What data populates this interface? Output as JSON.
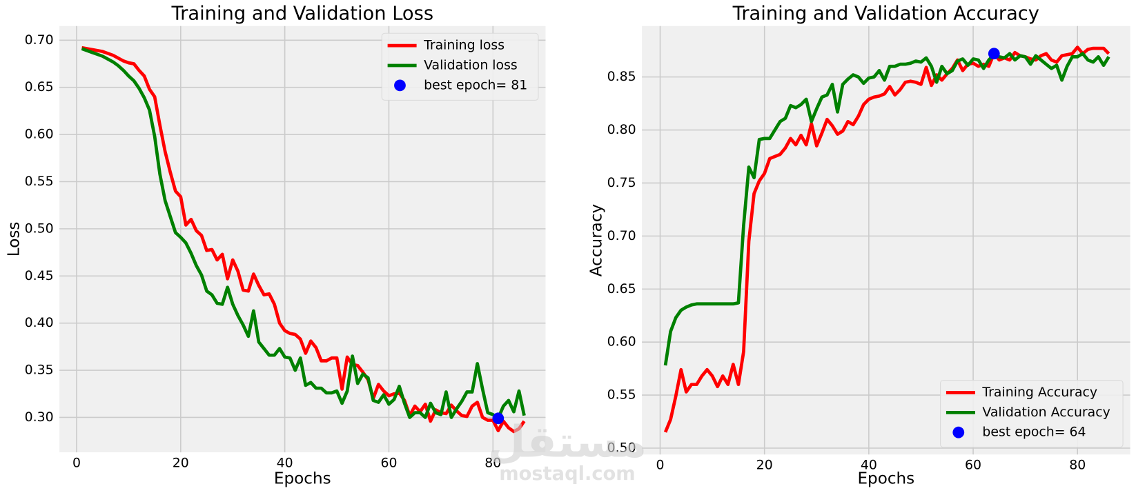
{
  "chart_data": [
    {
      "type": "line",
      "title": "Training and Validation Loss",
      "xlabel": "Epochs",
      "ylabel": "Loss",
      "x": [
        1,
        2,
        3,
        4,
        5,
        6,
        7,
        8,
        9,
        10,
        11,
        12,
        13,
        14,
        15,
        16,
        17,
        18,
        19,
        20,
        21,
        22,
        23,
        24,
        25,
        26,
        27,
        28,
        29,
        30,
        31,
        32,
        33,
        34,
        35,
        36,
        37,
        38,
        39,
        40,
        41,
        42,
        43,
        44,
        45,
        46,
        47,
        48,
        49,
        50,
        51,
        52,
        53,
        54,
        55,
        56,
        57,
        58,
        59,
        60,
        61,
        62,
        63,
        64,
        65,
        66,
        67,
        68,
        69,
        70,
        71,
        72,
        73,
        74,
        75,
        76,
        77,
        78,
        79,
        80,
        81,
        82,
        83,
        84,
        85,
        86
      ],
      "series": [
        {
          "name": "Training loss",
          "color": "red",
          "values": [
            0.692,
            0.691,
            0.69,
            0.689,
            0.688,
            0.686,
            0.684,
            0.681,
            0.678,
            0.676,
            0.675,
            0.668,
            0.662,
            0.648,
            0.64,
            0.61,
            0.582,
            0.56,
            0.54,
            0.534,
            0.504,
            0.51,
            0.498,
            0.493,
            0.477,
            0.478,
            0.467,
            0.473,
            0.447,
            0.467,
            0.455,
            0.435,
            0.434,
            0.452,
            0.44,
            0.43,
            0.431,
            0.42,
            0.4,
            0.392,
            0.389,
            0.388,
            0.383,
            0.368,
            0.381,
            0.374,
            0.36,
            0.36,
            0.363,
            0.363,
            0.33,
            0.364,
            0.356,
            0.355,
            0.348,
            0.34,
            0.32,
            0.335,
            0.328,
            0.323,
            0.325,
            0.326,
            0.318,
            0.302,
            0.312,
            0.306,
            0.314,
            0.296,
            0.308,
            0.305,
            0.304,
            0.313,
            0.307,
            0.302,
            0.301,
            0.312,
            0.316,
            0.3,
            0.297,
            0.297,
            0.286,
            0.296,
            0.289,
            0.285,
            0.288,
            0.296
          ]
        },
        {
          "name": "Validation loss",
          "color": "green",
          "values": [
            0.691,
            0.689,
            0.687,
            0.685,
            0.683,
            0.68,
            0.677,
            0.673,
            0.668,
            0.662,
            0.657,
            0.649,
            0.639,
            0.626,
            0.598,
            0.558,
            0.53,
            0.513,
            0.496,
            0.491,
            0.485,
            0.474,
            0.461,
            0.451,
            0.434,
            0.43,
            0.421,
            0.42,
            0.438,
            0.42,
            0.408,
            0.398,
            0.386,
            0.413,
            0.38,
            0.373,
            0.366,
            0.366,
            0.373,
            0.364,
            0.363,
            0.35,
            0.363,
            0.334,
            0.337,
            0.331,
            0.331,
            0.326,
            0.326,
            0.328,
            0.315,
            0.328,
            0.365,
            0.336,
            0.346,
            0.342,
            0.318,
            0.316,
            0.324,
            0.314,
            0.319,
            0.333,
            0.315,
            0.3,
            0.305,
            0.305,
            0.3,
            0.315,
            0.305,
            0.303,
            0.327,
            0.3,
            0.309,
            0.317,
            0.327,
            0.327,
            0.357,
            0.33,
            0.305,
            0.303,
            0.299,
            0.312,
            0.318,
            0.306,
            0.328,
            0.302
          ]
        },
        {
          "name": "best epoch= 81",
          "color": "blue",
          "x": [
            81
          ],
          "values": [
            0.299
          ]
        }
      ],
      "xlim": [
        -3.3,
        90.1
      ],
      "xticks": [
        0,
        20,
        40,
        60,
        80
      ],
      "ylim": [
        0.263,
        0.715
      ],
      "yticks": [
        {
          "value": 0.3,
          "label": "0.30"
        },
        0.35,
        {
          "value": 0.4,
          "label": "0.40"
        },
        0.45,
        {
          "value": 0.5,
          "label": "0.50"
        },
        0.55,
        {
          "value": 0.6,
          "label": "0.60"
        },
        0.65,
        {
          "value": 0.7,
          "label": "0.70"
        }
      ],
      "grid": true,
      "legend": "upper right"
    },
    {
      "type": "line",
      "title": "Training and Validation Accuracy",
      "xlabel": "Epochs",
      "ylabel": "Accuracy",
      "x": [
        1,
        2,
        3,
        4,
        5,
        6,
        7,
        8,
        9,
        10,
        11,
        12,
        13,
        14,
        15,
        16,
        17,
        18,
        19,
        20,
        21,
        22,
        23,
        24,
        25,
        26,
        27,
        28,
        29,
        30,
        31,
        32,
        33,
        34,
        35,
        36,
        37,
        38,
        39,
        40,
        41,
        42,
        43,
        44,
        45,
        46,
        47,
        48,
        49,
        50,
        51,
        52,
        53,
        54,
        55,
        56,
        57,
        58,
        59,
        60,
        61,
        62,
        63,
        64,
        65,
        66,
        67,
        68,
        69,
        70,
        71,
        72,
        73,
        74,
        75,
        76,
        77,
        78,
        79,
        80,
        81,
        82,
        83,
        84,
        85,
        86
      ],
      "series": [
        {
          "name": "Training Accuracy",
          "color": "red",
          "values": [
            0.515,
            0.527,
            0.549,
            0.574,
            0.553,
            0.56,
            0.56,
            0.568,
            0.574,
            0.568,
            0.558,
            0.568,
            0.56,
            0.579,
            0.56,
            0.591,
            0.695,
            0.74,
            0.752,
            0.759,
            0.773,
            0.775,
            0.777,
            0.783,
            0.792,
            0.786,
            0.795,
            0.786,
            0.806,
            0.785,
            0.797,
            0.81,
            0.804,
            0.796,
            0.799,
            0.808,
            0.805,
            0.813,
            0.824,
            0.829,
            0.831,
            0.832,
            0.834,
            0.841,
            0.833,
            0.838,
            0.845,
            0.846,
            0.845,
            0.843,
            0.859,
            0.842,
            0.852,
            0.847,
            0.853,
            0.858,
            0.866,
            0.856,
            0.862,
            0.863,
            0.86,
            0.862,
            0.86,
            0.872,
            0.866,
            0.868,
            0.866,
            0.873,
            0.87,
            0.869,
            0.867,
            0.866,
            0.87,
            0.872,
            0.866,
            0.864,
            0.87,
            0.871,
            0.872,
            0.878,
            0.872,
            0.876,
            0.877,
            0.877,
            0.877,
            0.872
          ]
        },
        {
          "name": "Validation Accuracy",
          "color": "green",
          "values": [
            0.578,
            0.61,
            0.623,
            0.63,
            0.633,
            0.635,
            0.636,
            0.636,
            0.636,
            0.636,
            0.636,
            0.636,
            0.636,
            0.636,
            0.637,
            0.71,
            0.765,
            0.755,
            0.791,
            0.792,
            0.792,
            0.8,
            0.808,
            0.811,
            0.823,
            0.821,
            0.824,
            0.829,
            0.808,
            0.82,
            0.831,
            0.833,
            0.843,
            0.817,
            0.843,
            0.848,
            0.852,
            0.85,
            0.844,
            0.849,
            0.85,
            0.856,
            0.847,
            0.86,
            0.86,
            0.862,
            0.862,
            0.863,
            0.865,
            0.864,
            0.868,
            0.86,
            0.845,
            0.86,
            0.853,
            0.856,
            0.865,
            0.867,
            0.861,
            0.867,
            0.866,
            0.858,
            0.866,
            0.871,
            0.869,
            0.868,
            0.872,
            0.866,
            0.87,
            0.869,
            0.862,
            0.87,
            0.866,
            0.862,
            0.858,
            0.861,
            0.847,
            0.86,
            0.869,
            0.869,
            0.872,
            0.866,
            0.864,
            0.869,
            0.861,
            0.869
          ]
        },
        {
          "name": "best epoch= 64",
          "color": "blue",
          "x": [
            64
          ],
          "values": [
            0.872
          ]
        }
      ],
      "xlim": [
        -3.5,
        90.1
      ],
      "xticks": [
        0,
        20,
        40,
        60,
        80
      ],
      "ylim": [
        0.494,
        0.898
      ],
      "yticks": [
        {
          "value": 0.5,
          "label": "0.50"
        },
        0.55,
        {
          "value": 0.6,
          "label": "0.60"
        },
        0.65,
        {
          "value": 0.7,
          "label": "0.70"
        },
        0.75,
        {
          "value": 0.8,
          "label": "0.80"
        },
        0.85
      ],
      "grid": true,
      "legend": "lower right"
    }
  ],
  "watermark": {
    "logo": "مستقل",
    "text": "mostaql.com"
  }
}
